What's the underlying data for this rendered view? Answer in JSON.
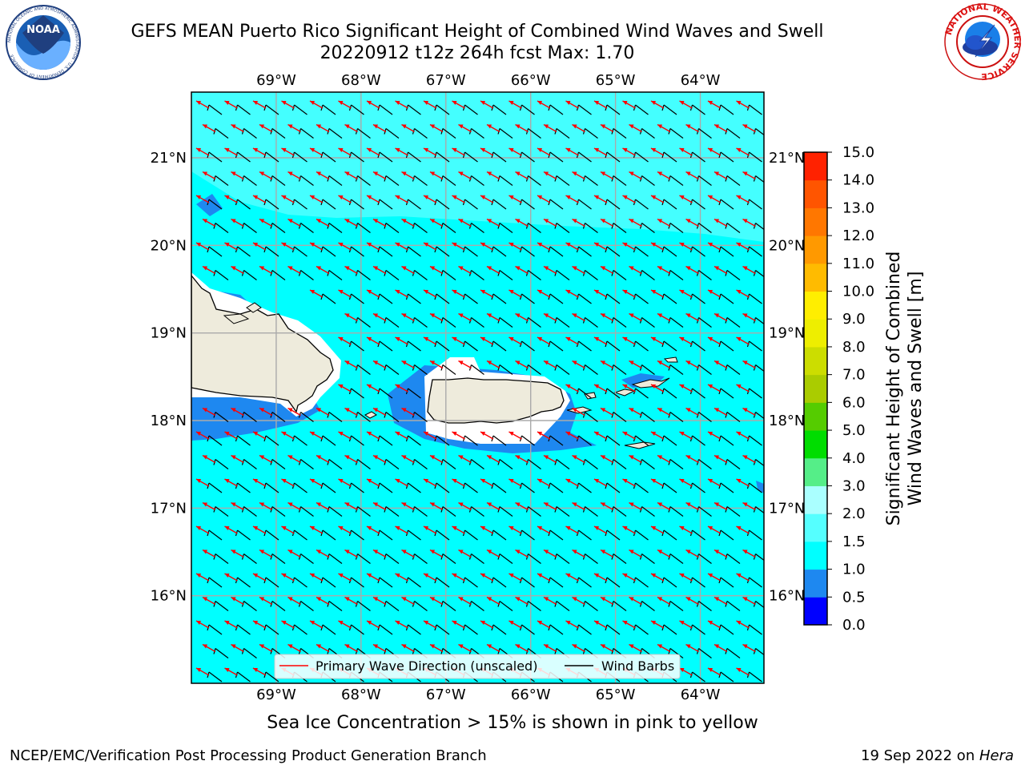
{
  "title": {
    "line1": "GEFS MEAN Puerto Rico Significant Height of Combined Wind Waves and Swell",
    "line2": "20220912 t12z 264h fcst   Max: 1.70"
  },
  "logos": {
    "noaa": {
      "text": "NOAA",
      "ring_text": "NATIONAL OCEANIC AND ATMOSPHERIC ADMINISTRATION · U.S. DEPARTMENT OF COMMERCE",
      "icon": "noaa-logo"
    },
    "nws": {
      "ring_text": "NATIONAL WEATHER SERVICE",
      "icon": "nws-logo"
    }
  },
  "map": {
    "longitude_labels": [
      "69°W",
      "68°W",
      "67°W",
      "66°W",
      "65°W",
      "64°W"
    ],
    "latitude_labels": [
      "21°N",
      "20°N",
      "19°N",
      "18°N",
      "17°N",
      "16°N"
    ],
    "extent": {
      "lon_min": -70.0,
      "lon_max": -63.25,
      "lat_min": 15.0,
      "lat_max": 21.75
    },
    "colors": {
      "ocean_main": "#00ffff",
      "ocean_light": "#44ffff",
      "shallow": "#1e88f0",
      "land": "#eeebdc",
      "wave_arrow": "#ff0000",
      "wind_barb": "#000000"
    },
    "legend": {
      "wave_direction": "Primary Wave Direction (unscaled)",
      "wind_barbs": "Wind Barbs"
    }
  },
  "colorbar": {
    "ticks": [
      "0.0",
      "0.5",
      "1.0",
      "1.5",
      "2.0",
      "3.0",
      "4.0",
      "5.0",
      "6.0",
      "7.0",
      "8.0",
      "9.0",
      "10.0",
      "11.0",
      "12.0",
      "13.0",
      "14.0",
      "15.0"
    ],
    "colors": [
      "#0000ff",
      "#1e88f0",
      "#00ffff",
      "#55ffff",
      "#aaffff",
      "#55ee88",
      "#00dd00",
      "#55cc00",
      "#aacc00",
      "#ccdd00",
      "#eeee00",
      "#ffee00",
      "#ffbb00",
      "#ff9900",
      "#ff7700",
      "#ff5500",
      "#ff2200"
    ],
    "label_line1": "Significant Height of Combined",
    "label_line2": "Wind Waves and Swell [m]"
  },
  "footer": {
    "sea_ice_note": "Sea Ice Concentration > 15% is shown in pink to yellow",
    "credit_left": "NCEP/EMC/Verification Post Processing Product Generation Branch",
    "credit_date": "19 Sep 2022 on ",
    "credit_host": "Hera"
  }
}
